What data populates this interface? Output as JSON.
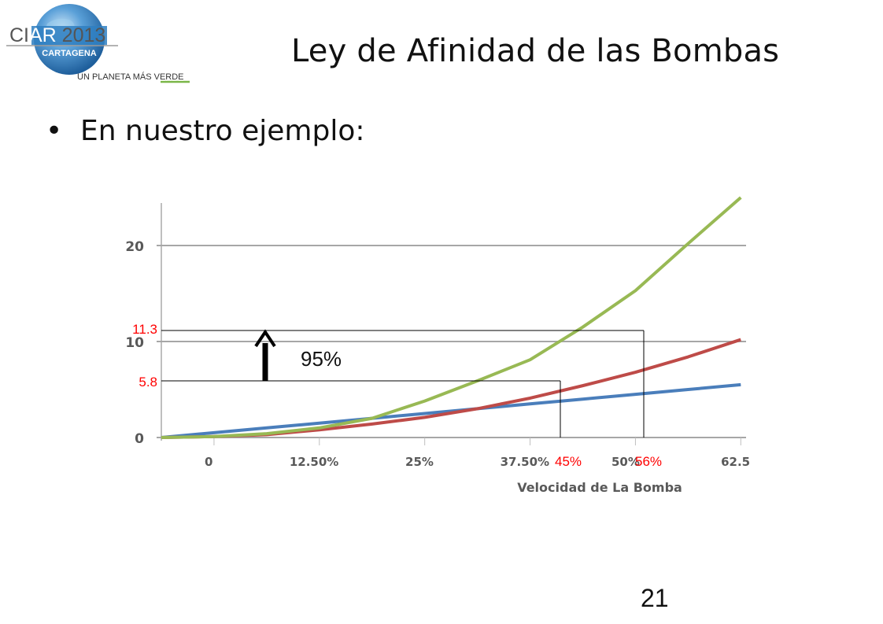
{
  "slide": {
    "title": "Ley de Afinidad de las Bombas",
    "bullet_text": "En nuestro ejemplo:",
    "page_number": "21"
  },
  "logo": {
    "name_part1": "CI",
    "name_part2": "AR",
    "name_part3": " 2013",
    "city": "CARTAGENA",
    "tagline_prefix": "UN PLANETA MÁS ",
    "tagline_highlight": "VERDE",
    "colors": {
      "globe": "#2f7fc1",
      "text": "#555555",
      "accent": "#7ab648"
    }
  },
  "chart_data": {
    "type": "line",
    "categories": [
      "0",
      "12.50%",
      "25%",
      "37.50%",
      "50%",
      "62.5"
    ],
    "xlabel": "Velocidad de La Bomba",
    "yticks": [
      0,
      10,
      20
    ],
    "ylim": [
      0,
      25
    ],
    "xlim": [
      0,
      5.55
    ],
    "grid": true,
    "series": [
      {
        "color": "#4a7ebb",
        "x": [
          0,
          0.5,
          1,
          1.5,
          2,
          2.5,
          3,
          3.5,
          4,
          4.5,
          5,
          5.5
        ],
        "y": [
          0,
          0.5,
          1,
          1.5,
          2,
          2.5,
          3,
          3.5,
          4,
          4.5,
          5,
          5.5
        ]
      },
      {
        "color": "#be4b48",
        "x": [
          0,
          0.5,
          1,
          1.5,
          2,
          2.5,
          3,
          3.5,
          4,
          4.5,
          5,
          5.5
        ],
        "y": [
          0,
          0.1,
          0.3,
          0.8,
          1.4,
          2.1,
          3,
          4.1,
          5.4,
          6.8,
          8.4,
          10.2
        ]
      },
      {
        "color": "#98b954",
        "x": [
          0,
          0.5,
          1,
          1.5,
          2,
          2.5,
          3,
          3.5,
          4,
          4.5,
          5,
          5.5
        ],
        "y": [
          0,
          0.1,
          0.4,
          1,
          2,
          3.8,
          5.9,
          8.1,
          11.5,
          15.3,
          20.2,
          25
        ]
      }
    ],
    "annotations": {
      "color": "#ff0000",
      "low": {
        "y": 5.8,
        "y_label": "5.8",
        "x": 3.35,
        "x_label": "45%"
      },
      "high": {
        "y": 11.3,
        "y_label": "11.3",
        "x": 4.1,
        "x_label": "56%"
      },
      "increase_label": "95%"
    }
  }
}
